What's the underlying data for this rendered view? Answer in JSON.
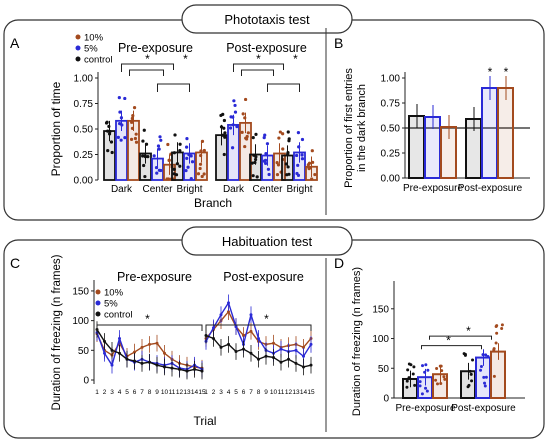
{
  "colors": {
    "control": "#111111",
    "low": "#2a2ad6",
    "high": "#a34a1e",
    "panel_border": "#333333"
  },
  "sections": {
    "phototaxis": "Phototaxis test",
    "habituation": "Habituation test"
  },
  "panels": {
    "A": "A",
    "B": "B",
    "C": "C",
    "D": "D"
  },
  "legend_labels": {
    "high": "10%",
    "low": "5%",
    "control": "control"
  },
  "chart_data": [
    {
      "id": "A",
      "type": "bar",
      "groups": [
        {
          "title": "Pre-exposure",
          "categories": [
            "Dark",
            "Center",
            "Bright"
          ]
        },
        {
          "title": "Post-exposure",
          "categories": [
            "Dark",
            "Center",
            "Bright"
          ]
        }
      ],
      "series": [
        {
          "name": "control",
          "pre": [
            0.48,
            0.26,
            0.27
          ],
          "post": [
            0.44,
            0.25,
            0.24
          ]
        },
        {
          "name": "5%",
          "pre": [
            0.58,
            0.21,
            0.26
          ],
          "post": [
            0.54,
            0.24,
            0.27
          ]
        },
        {
          "name": "10%",
          "pre": [
            0.58,
            0.15,
            0.27
          ],
          "post": [
            0.56,
            0.26,
            0.13
          ]
        }
      ],
      "ylabel": "Proportion of time",
      "xlabel": "Branch",
      "ylim": [
        0,
        1
      ],
      "yticks": [
        "0.00",
        "0.25",
        "0.50",
        "0.75",
        "1.00"
      ],
      "significance": "*",
      "legend": "top-left"
    },
    {
      "id": "B",
      "type": "bar",
      "categories": [
        "Pre-exposure",
        "Post-exposure"
      ],
      "series": [
        {
          "name": "control",
          "values": [
            0.62,
            0.59
          ]
        },
        {
          "name": "5%",
          "values": [
            0.61,
            0.9
          ]
        },
        {
          "name": "10%",
          "values": [
            0.51,
            0.9
          ]
        }
      ],
      "ylabel": "Proportion of first entries in the dark branch",
      "ylim": [
        0,
        1
      ],
      "yticks": [
        "0.00",
        "0.25",
        "0.50",
        "0.75",
        "1.00"
      ],
      "reference_line": 0.5,
      "significance": "*"
    },
    {
      "id": "C",
      "type": "line",
      "groups": [
        "Pre-exposure",
        "Post-exposure"
      ],
      "x": [
        1,
        2,
        3,
        4,
        5,
        6,
        7,
        8,
        9,
        10,
        11,
        12,
        13,
        14,
        15
      ],
      "xticks": [
        "1",
        "2",
        "3",
        "4",
        "5",
        "6",
        "7",
        "8",
        "9",
        "10",
        "11",
        "12",
        "13",
        "14",
        "15"
      ],
      "series": [
        {
          "name": "10%",
          "pre": [
            78,
            50,
            42,
            62,
            40,
            47,
            55,
            60,
            62,
            45,
            35,
            28,
            25,
            22,
            20
          ],
          "post": [
            70,
            85,
            100,
            115,
            90,
            75,
            82,
            65,
            60,
            62,
            55,
            58,
            60,
            55,
            70
          ]
        },
        {
          "name": "5%",
          "pre": [
            80,
            45,
            25,
            70,
            35,
            30,
            35,
            30,
            28,
            25,
            28,
            20,
            18,
            25,
            18
          ],
          "post": [
            65,
            88,
            110,
            130,
            90,
            60,
            110,
            70,
            50,
            45,
            52,
            48,
            50,
            40,
            60
          ]
        },
        {
          "name": "control",
          "pre": [
            85,
            65,
            50,
            45,
            35,
            32,
            28,
            30,
            25,
            22,
            20,
            18,
            15,
            18,
            15
          ],
          "post": [
            75,
            70,
            55,
            60,
            48,
            52,
            45,
            35,
            40,
            38,
            30,
            35,
            28,
            22,
            25
          ]
        }
      ],
      "ylabel": "Duration of freezing (n frames)",
      "xlabel": "Trial",
      "ylim": [
        0,
        160
      ],
      "yticks": [
        "0",
        "50",
        "100",
        "150"
      ],
      "significance": "*",
      "legend": "top-left"
    },
    {
      "id": "D",
      "type": "bar",
      "categories": [
        "Pre-exposure",
        "Post-exposure"
      ],
      "series": [
        {
          "name": "control",
          "values": [
            32,
            45
          ]
        },
        {
          "name": "5%",
          "values": [
            35,
            68
          ]
        },
        {
          "name": "10%",
          "values": [
            40,
            78
          ]
        }
      ],
      "ylabel": "Duration of freezing (n frames)",
      "ylim": [
        0,
        190
      ],
      "yticks": [
        "0",
        "50",
        "100",
        "150"
      ],
      "significance": "*"
    }
  ]
}
